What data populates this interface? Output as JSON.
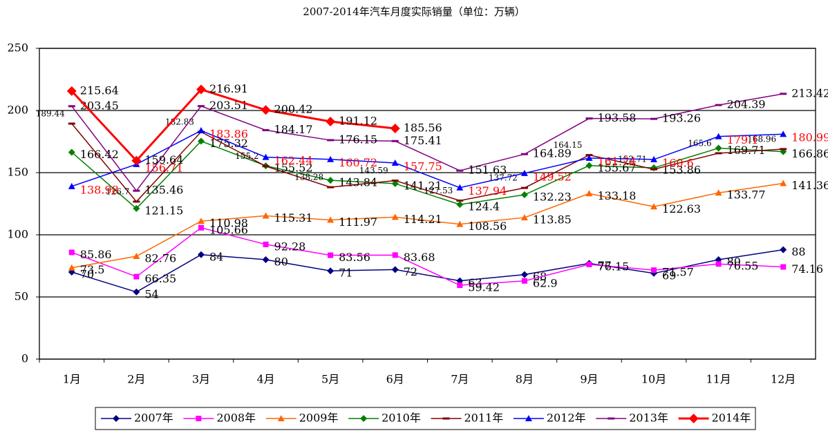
{
  "chart_data": {
    "type": "line",
    "title": "2007-2014年汽车月度实际销量（单位：万辆）",
    "categories": [
      "1月",
      "2月",
      "3月",
      "4月",
      "5月",
      "6月",
      "7月",
      "8月",
      "9月",
      "10月",
      "11月",
      "12月"
    ],
    "ylim": [
      0,
      250
    ],
    "yticks": [
      0,
      50,
      100,
      150,
      200,
      250
    ],
    "grid": true,
    "legend": "bottom",
    "series": [
      {
        "name": "2007年",
        "color": "#000080",
        "marker": "diamond",
        "label_color": "#000000",
        "values": [
          70,
          54,
          84,
          80,
          71,
          72,
          63,
          68,
          77,
          69,
          80,
          88
        ]
      },
      {
        "name": "2008年",
        "color": "#ff00ff",
        "marker": "square",
        "label_color": "#000000",
        "values": [
          85.86,
          66.35,
          105.66,
          92.28,
          83.56,
          83.68,
          59.42,
          62.9,
          76.15,
          71.57,
          76.55,
          74.16
        ]
      },
      {
        "name": "2009年",
        "color": "#ff6600",
        "marker": "triangle",
        "label_color": "#000000",
        "values": [
          73.5,
          82.76,
          110.98,
          115.31,
          111.97,
          114.21,
          108.56,
          113.85,
          133.18,
          122.63,
          133.77,
          141.36
        ]
      },
      {
        "name": "2010年",
        "color": "#008000",
        "marker": "diamond",
        "label_color": "#000000",
        "values": [
          166.42,
          121.15,
          175.32,
          155.52,
          143.84,
          141.21,
          124.4,
          132.23,
          155.67,
          153.86,
          169.71,
          166.86
        ]
      },
      {
        "name": "2011年",
        "color": "#800000",
        "marker": "dash",
        "label_color": "#000000",
        "values": [
          189.44,
          126.7,
          182.83,
          155.2,
          138.28,
          143.59,
          127.53,
          137.72,
          164.15,
          152.71,
          165.6,
          168.96
        ]
      },
      {
        "name": "2012年",
        "color": "#0000ff",
        "marker": "triangle",
        "label_color": "#ff0000",
        "values": [
          138.98,
          156.71,
          183.86,
          162.44,
          160.72,
          157.75,
          137.94,
          149.52,
          161.74,
          160.6,
          179.1,
          180.99
        ]
      },
      {
        "name": "2013年",
        "color": "#800080",
        "marker": "dash",
        "label_color": "#000000",
        "values": [
          203.45,
          135.46,
          203.51,
          184.17,
          176.15,
          175.41,
          151.63,
          164.89,
          193.58,
          193.26,
          204.39,
          213.42
        ]
      },
      {
        "name": "2014年",
        "color": "#ff0000",
        "marker": "diamond",
        "label_color": "#000000",
        "values": [
          215.64,
          159.64,
          216.91,
          200.42,
          191.12,
          185.56,
          null,
          null,
          null,
          null,
          null,
          null
        ]
      }
    ]
  }
}
